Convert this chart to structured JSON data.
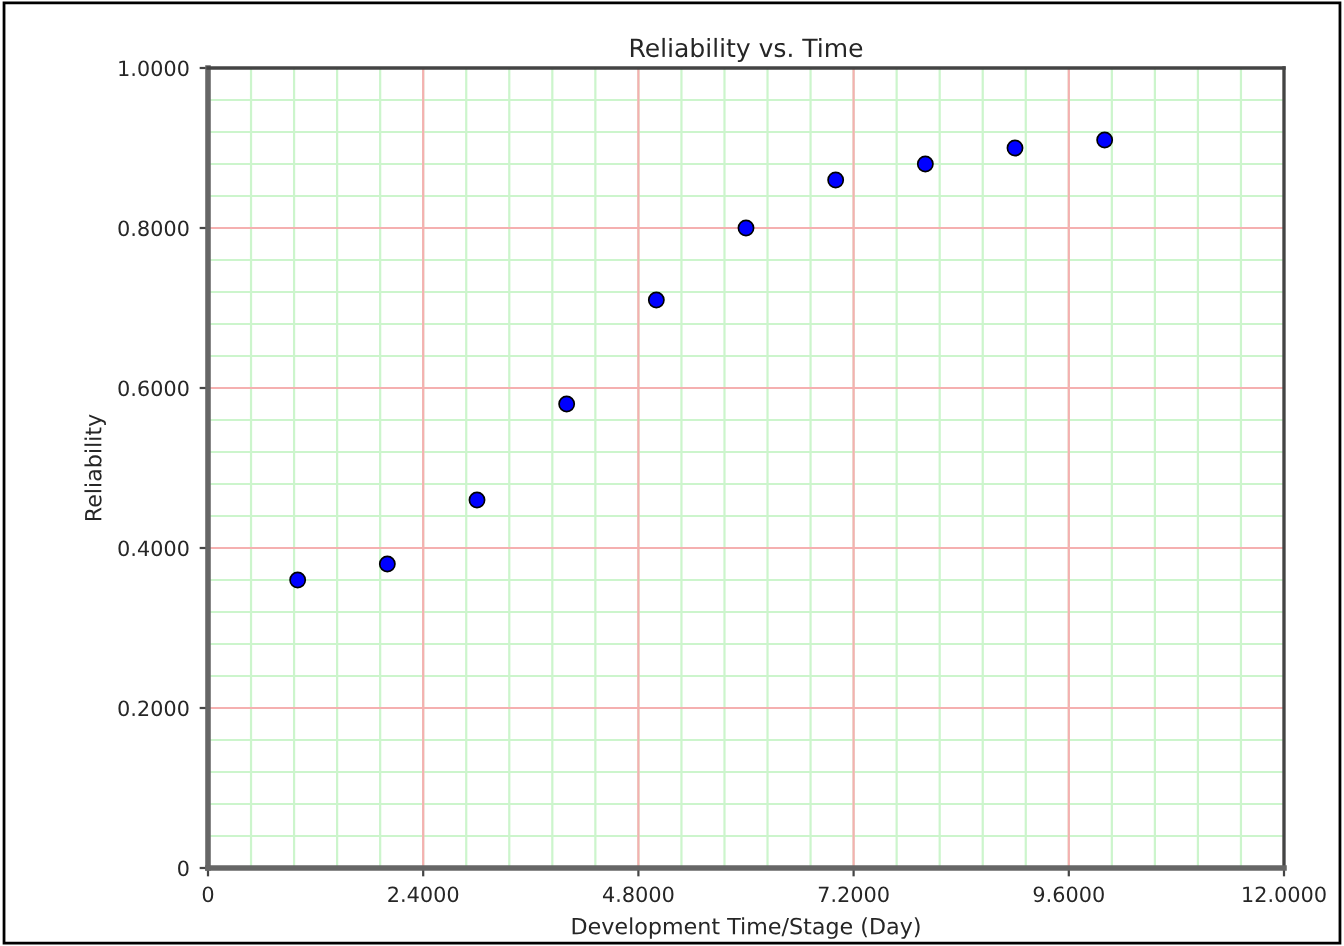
{
  "chart_data": {
    "type": "scatter",
    "title": "Reliability vs. Time",
    "xlabel": "Development Time/Stage (Day)",
    "ylabel": "Reliability",
    "x": [
      1,
      2,
      3,
      4,
      5,
      6,
      7,
      8,
      9,
      10
    ],
    "series": [
      {
        "color": "#0000ff",
        "values": [
          0.36,
          0.38,
          0.46,
          0.58,
          0.71,
          0.8,
          0.86,
          0.88,
          0.9,
          0.91
        ]
      }
    ],
    "xlim": [
      0,
      12
    ],
    "ylim": [
      0,
      1
    ],
    "xticks": [
      0,
      {
        "value": 2.4,
        "label": "2.4000"
      },
      {
        "value": 4.8,
        "label": "4.8000"
      },
      {
        "value": 7.2,
        "label": "7.2000"
      },
      {
        "value": 9.6,
        "label": "9.6000"
      },
      {
        "value": 12,
        "label": "12.0000"
      }
    ],
    "yticks": [
      0,
      {
        "value": 0.2,
        "label": "0.2000"
      },
      {
        "value": 0.4,
        "label": "0.4000"
      },
      {
        "value": 0.6,
        "label": "0.6000"
      },
      {
        "value": 0.8,
        "label": "0.8000"
      },
      {
        "value": 1,
        "label": "1.0000"
      }
    ],
    "grid": true,
    "marker": "circle"
  }
}
